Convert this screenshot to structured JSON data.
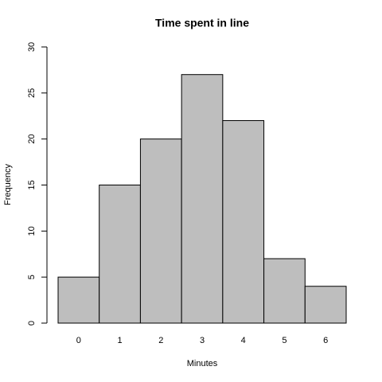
{
  "chart_data": {
    "type": "bar",
    "title": "Time spent in line",
    "x_label": "Minutes",
    "y_label": "Frequency",
    "categories": [
      "0",
      "1",
      "2",
      "3",
      "4",
      "5",
      "6"
    ],
    "values": [
      5,
      15,
      20,
      27,
      22,
      7,
      4
    ],
    "color": "#bebebe",
    "ylim": [
      0,
      30
    ],
    "yticks": [
      0,
      5,
      10,
      15,
      20,
      25,
      30
    ]
  }
}
